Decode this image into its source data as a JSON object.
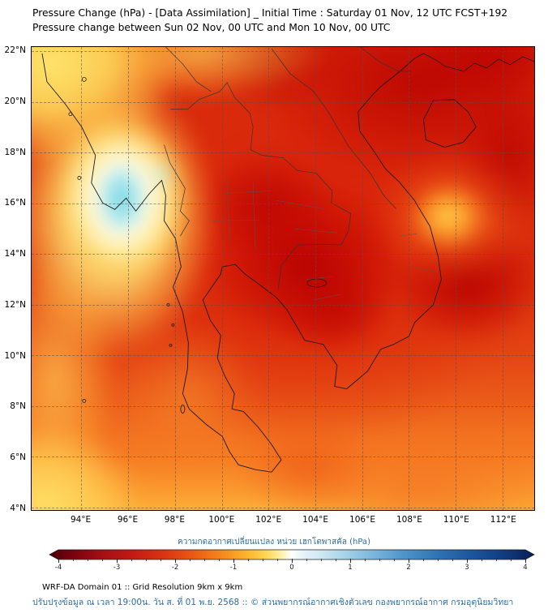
{
  "header": {
    "title_line1": "Pressure Change (hPa) - [Data Assimilation] _ Initial Time : Saturday 01 Nov, 12 UTC FCST+192",
    "title_line2": "Pressure change between Sun 02 Nov, 00 UTC and Mon 10 Nov, 00 UTC"
  },
  "map": {
    "lat_labels": [
      "22°N",
      "20°N",
      "18°N",
      "16°N",
      "14°N",
      "12°N",
      "10°N",
      "8°N",
      "6°N",
      "4°N"
    ],
    "lon_labels": [
      "94°E",
      "96°E",
      "98°E",
      "100°E",
      "102°E",
      "104°E",
      "106°E",
      "108°E",
      "110°E",
      "112°E"
    ]
  },
  "colorbar": {
    "title": "ความกดอากาศเปลี่ยนแปลง หน่วย เฮกโตพาสคัล (hPa)",
    "ticks": [
      "-4",
      "-3",
      "-2",
      "-1",
      "0",
      "1",
      "2",
      "3",
      "4"
    ],
    "range": [
      -4,
      4
    ],
    "gradient_stops": [
      [
        0,
        "#4f0008"
      ],
      [
        0.04,
        "#73000d"
      ],
      [
        0.1,
        "#9e0e13"
      ],
      [
        0.17,
        "#c21a14"
      ],
      [
        0.24,
        "#d93712"
      ],
      [
        0.3,
        "#ea5c14"
      ],
      [
        0.36,
        "#f68b1f"
      ],
      [
        0.41,
        "#fdb62f"
      ],
      [
        0.45,
        "#ffd95c"
      ],
      [
        0.48,
        "#fff3b0"
      ],
      [
        0.5,
        "#ffffff"
      ],
      [
        0.52,
        "#e8f4fa"
      ],
      [
        0.56,
        "#cfe7f5"
      ],
      [
        0.61,
        "#a6d2ea"
      ],
      [
        0.67,
        "#79b5dc"
      ],
      [
        0.73,
        "#4f94c9"
      ],
      [
        0.8,
        "#2f74b3"
      ],
      [
        0.87,
        "#1d559e"
      ],
      [
        0.93,
        "#123f85"
      ],
      [
        1,
        "#081f56"
      ]
    ]
  },
  "footer": {
    "line1": "WRF-DA Domain 01 :: Grid Resolution 9km x 9km",
    "line2": "ปรับปรุงข้อมูล ณ เวลา 19:00น. วัน ส. ที่ 01 พ.ย. 2568 :: © ส่วนพยากรณ์อากาศเชิงตัวเลข กองพยากรณ์อากาศ กรมอุตุนิยมวิทยา"
  },
  "chart_data": {
    "type": "heatmap",
    "title": "Pressure Change (hPa) - [Data Assimilation] _ Initial Time : Saturday 01 Nov, 12 UTC FCST+192",
    "subtitle": "Pressure change between Sun 02 Nov, 00 UTC and Mon 10 Nov, 00 UTC",
    "variable": "surface pressure change",
    "units": "hPa",
    "xlabel": "longitude (°E)",
    "ylabel": "latitude (°N)",
    "x_ticks": [
      94,
      96,
      98,
      100,
      102,
      104,
      106,
      108,
      110,
      112
    ],
    "y_ticks": [
      22,
      20,
      18,
      16,
      14,
      12,
      10,
      8,
      6,
      4
    ],
    "grid": true,
    "colorbar_label": "ความกดอากาศเปลี่ยนแปลง หน่วย เฮกโตพาสคัล (hPa)",
    "colorbar_range": [
      -4,
      4
    ],
    "color_meaning": {
      "negative": "pressure falls — dark red (-4) through red, orange, yellow toward 0",
      "zero": "white",
      "positive": "pressure rises — light blue through blue to dark navy (+4)"
    },
    "lon": [
      94,
      96,
      98,
      100,
      102,
      104,
      106,
      108,
      110,
      112
    ],
    "lat": [
      22,
      20,
      18,
      16,
      14,
      12,
      10,
      8,
      6,
      4
    ],
    "values": [
      [
        -0.5,
        -1.0,
        -1.5,
        -2.5,
        -3.0,
        -2.8,
        -2.8,
        -2.8,
        -2.8,
        -3.0
      ],
      [
        -0.7,
        -1.2,
        -1.8,
        -2.5,
        -3.0,
        -2.8,
        -2.5,
        -2.5,
        -2.7,
        -2.8
      ],
      [
        -0.5,
        -0.8,
        -1.5,
        -2.2,
        -2.5,
        -2.5,
        -2.5,
        -2.3,
        -2.5,
        -2.5
      ],
      [
        0.5,
        0.8,
        -1.0,
        -2.0,
        -2.5,
        -2.5,
        -2.3,
        -2.0,
        -1.0,
        -1.8
      ],
      [
        -0.5,
        -0.8,
        -1.5,
        -2.2,
        -2.8,
        -3.0,
        -2.8,
        -2.2,
        -1.5,
        -2.2
      ],
      [
        -1.0,
        -1.2,
        -1.8,
        -2.2,
        -2.8,
        -3.0,
        -2.8,
        -2.5,
        -2.8,
        -2.8
      ],
      [
        -1.2,
        -1.3,
        -1.5,
        -2.0,
        -2.5,
        -2.8,
        -2.5,
        -2.2,
        -2.5,
        -2.5
      ],
      [
        -1.0,
        -1.2,
        -1.3,
        -1.5,
        -2.0,
        -2.2,
        -2.3,
        -2.0,
        -2.0,
        -2.0
      ],
      [
        -0.8,
        -1.0,
        -1.2,
        -1.3,
        -1.5,
        -1.8,
        -2.0,
        -1.8,
        -1.8,
        -1.8
      ],
      [
        -0.7,
        -0.8,
        -1.0,
        -1.2,
        -1.3,
        -1.5,
        -1.8,
        -1.7,
        -1.7,
        -1.7
      ]
    ],
    "features": [
      {
        "desc": "cyan patch of rising pressure over Bay of Bengal / Myanmar coast",
        "lon": 95.7,
        "lat": 16.2,
        "value": 0.8
      },
      {
        "desc": "strongest falls (dark red) over northern Vietnam / Gulf of Tonkin",
        "lon": 103.0,
        "lat": 21.5,
        "value": -3.2
      },
      {
        "desc": "dark red core over central Thailand–Cambodia",
        "lon": 103.5,
        "lat": 13.5,
        "value": -3.0
      },
      {
        "desc": "dark red core offshore south-central Vietnam",
        "lon": 110.4,
        "lat": 12.8,
        "value": -3.0
      },
      {
        "desc": "yellow patch of weaker falls off central Vietnam coast",
        "lon": 109.6,
        "lat": 15.5,
        "value": -0.9
      },
      {
        "desc": "yellow weaker falls in northwest corner",
        "lon": 94.0,
        "lat": 21.5,
        "value": -0.6
      },
      {
        "desc": "yellow weaker falls along southern and southwestern edge",
        "lon": 94.5,
        "lat": 4.5,
        "value": -0.8
      }
    ],
    "overlay": "coastlines and national/provincial borders of Myanmar, Thailand, Laos, Cambodia, Vietnam and Hainan"
  }
}
